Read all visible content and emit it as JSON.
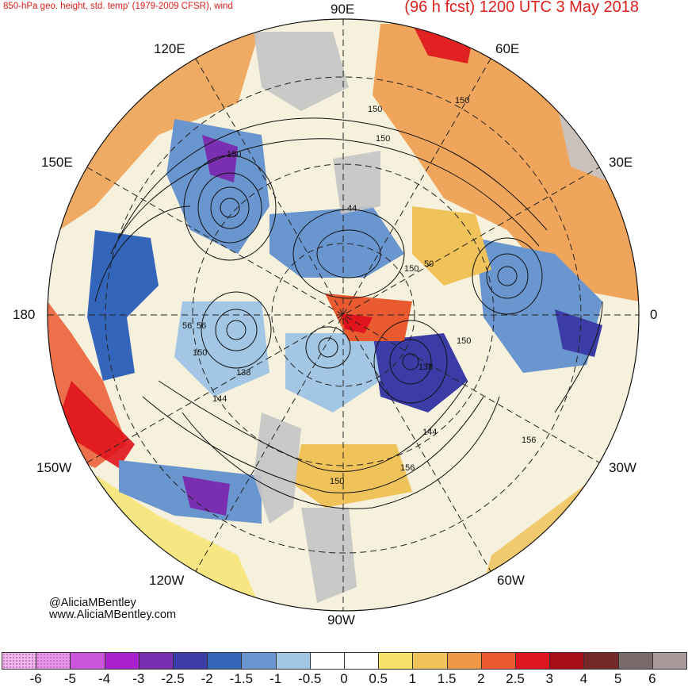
{
  "header": {
    "title_left": "850-hPa geo. height, std. temp' (1979-2009 CFSR), wind",
    "title_right": "(96 h fcst) 1200 UTC 3 May 2018"
  },
  "longitude_labels": {
    "top": "90E",
    "upper_left": "120E",
    "upper_right": "60E",
    "left_upper": "150E",
    "right_upper": "30E",
    "left": "180",
    "right": "0",
    "left_lower": "150W",
    "right_lower": "30W",
    "lower_left": "120W",
    "lower_right": "60W",
    "bottom": "90W"
  },
  "contour_labels": [
    "150",
    "150",
    "150",
    "150",
    "44",
    "150",
    "56",
    "150",
    "138",
    "144",
    "138",
    "50",
    "56",
    "150",
    "144",
    "156",
    "156",
    "150"
  ],
  "credit": {
    "handle": "@AliciaMBentley",
    "website": "www.AliciaMBentley.com"
  },
  "colorbar": {
    "ticks": [
      "-6",
      "-5",
      "-4",
      "-3",
      "-2.5",
      "-2",
      "-1.5",
      "-1",
      "-0.5",
      "0",
      "0.5",
      "1",
      "1.5",
      "2",
      "2.5",
      "3",
      "4",
      "5",
      "6"
    ],
    "colors": [
      "#f0b8ea",
      "#e696e6",
      "#cc55dd",
      "#aa22cc",
      "#7a2fb0",
      "#3c3ca6",
      "#3366bb",
      "#6a96cf",
      "#a3c6e4",
      "#ffffff",
      "#ffffff",
      "#f8e36a",
      "#f0c25a",
      "#ee9845",
      "#ea5a30",
      "#e0141c",
      "#a80c14",
      "#74282a",
      "#7a6a6a",
      "#a89898"
    ]
  },
  "map_colors": {
    "land_gray": "#c4c4c4",
    "cold_blue": "#3366bb",
    "warm_orange": "#ee9845",
    "hot_red": "#e0141c",
    "deep_purple": "#7a2fb0",
    "yellow": "#f8e36a"
  }
}
